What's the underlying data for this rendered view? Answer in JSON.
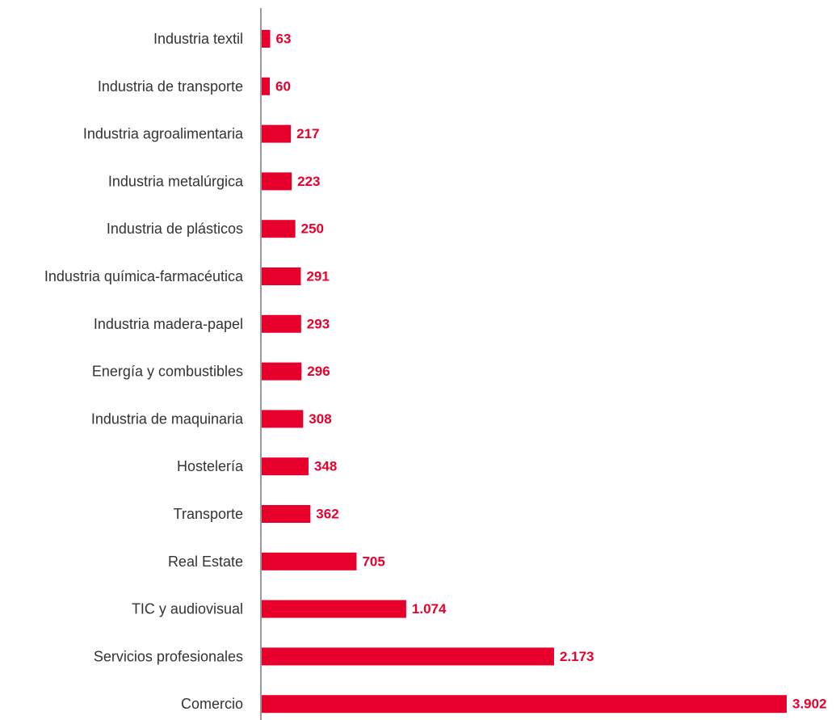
{
  "chart_data": {
    "type": "bar",
    "orientation": "horizontal",
    "categories": [
      "Industria textil",
      "Industria de transporte",
      "Industria agroalimentaria",
      "Industria metalúrgica",
      "Industria de plásticos",
      "Industria química-farmacéutica",
      "Industria madera-papel",
      "Energía y combustibles",
      "Industria de maquinaria",
      "Hostelería",
      "Transporte",
      "Real Estate",
      "TIC y audiovisual",
      "Servicios profesionales",
      "Comercio"
    ],
    "values": [
      63,
      60,
      217,
      223,
      250,
      291,
      293,
      296,
      308,
      348,
      362,
      705,
      1074,
      2173,
      3902
    ],
    "value_labels": [
      "63",
      "60",
      "217",
      "223",
      "250",
      "291",
      "293",
      "296",
      "308",
      "348",
      "362",
      "705",
      "1.074",
      "2.173",
      "3.902"
    ],
    "title": "",
    "xlabel": "",
    "ylabel": "",
    "xlim": [
      0,
      3902
    ],
    "grid": false,
    "colors": {
      "bar": "#e8002d",
      "value_label": "#e8002d",
      "category_label": "#333333",
      "axis": "#999999"
    }
  }
}
